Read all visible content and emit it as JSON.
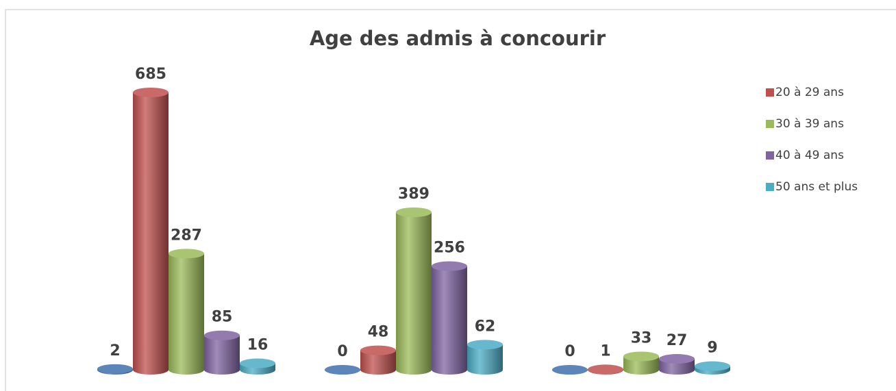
{
  "chart_data": {
    "type": "bar3d",
    "title": "Age des admis à concourir",
    "categories": [
      null,
      null,
      null
    ],
    "series": [
      {
        "color": "#3f6fae",
        "values": [
          2,
          0,
          0
        ]
      },
      {
        "name": "20 à 29 ans",
        "color": "#c0504d",
        "values": [
          685,
          48,
          1
        ]
      },
      {
        "name": "30 à 39 ans",
        "color": "#9bbb59",
        "values": [
          287,
          389,
          33
        ]
      },
      {
        "name": "40 à 49 ans",
        "color": "#8064a2",
        "values": [
          85,
          256,
          27
        ]
      },
      {
        "name": "50 ans et plus",
        "color": "#4bacc6",
        "values": [
          16,
          62,
          9
        ]
      }
    ],
    "legend": "right"
  }
}
